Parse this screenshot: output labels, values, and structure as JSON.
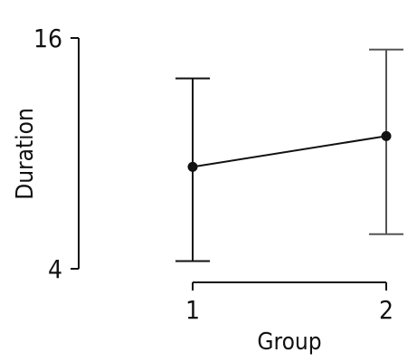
{
  "chart_data": {
    "type": "line",
    "x": [
      1,
      2
    ],
    "xlabel": "Group",
    "ylabel": "Duration",
    "xticks": [
      "1",
      "2"
    ],
    "yticks": [
      4,
      16
    ],
    "ylim": [
      4,
      16
    ],
    "series": [
      {
        "values": [
          9.3,
          10.9
        ],
        "error_low": [
          4.4,
          5.8
        ],
        "error_high": [
          13.9,
          15.4
        ],
        "color": "#111111",
        "errorbar_colors": [
          "#111111",
          "#555555"
        ]
      }
    ],
    "grid": false,
    "legend": "none"
  }
}
